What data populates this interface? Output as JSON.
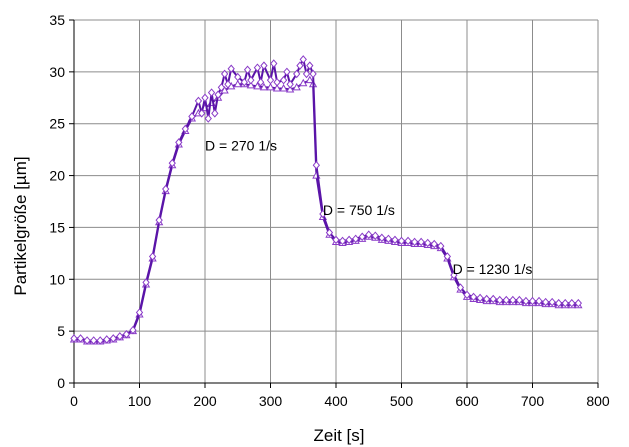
{
  "chart_data": {
    "type": "line",
    "title": "",
    "xlabel": "Zeit [s]",
    "ylabel": "Partikelgröße  [µm]",
    "xlim": [
      0,
      800
    ],
    "ylim": [
      0,
      35
    ],
    "xticks": [
      0,
      100,
      200,
      300,
      400,
      500,
      600,
      700,
      800
    ],
    "yticks": [
      0,
      5,
      10,
      15,
      20,
      25,
      30,
      35
    ],
    "grid": true,
    "line_color": "#5a14a8",
    "marker_color": "#8a3cc8",
    "series": [
      {
        "marker": "triangle",
        "x": [
          0,
          10,
          20,
          30,
          40,
          50,
          60,
          70,
          80,
          90,
          100,
          110,
          120,
          130,
          140,
          150,
          160,
          170,
          180,
          190,
          200,
          210,
          220,
          230,
          240,
          250,
          260,
          270,
          280,
          290,
          300,
          310,
          320,
          330,
          340,
          350,
          360,
          365,
          370,
          380,
          390,
          400,
          410,
          420,
          430,
          440,
          450,
          460,
          470,
          480,
          490,
          500,
          510,
          520,
          530,
          540,
          550,
          560,
          570,
          580,
          590,
          600,
          610,
          620,
          630,
          640,
          650,
          660,
          670,
          680,
          690,
          700,
          710,
          720,
          730,
          740,
          750,
          760,
          770
        ],
        "y": [
          4.2,
          4.2,
          4.0,
          4.0,
          4.0,
          4.1,
          4.2,
          4.4,
          4.6,
          5.0,
          6.6,
          9.5,
          12.0,
          15.5,
          18.5,
          21.0,
          23.0,
          24.3,
          25.5,
          26.0,
          26.5,
          27.0,
          27.5,
          28.2,
          28.6,
          28.8,
          28.8,
          28.7,
          28.6,
          28.5,
          28.5,
          28.4,
          28.4,
          28.3,
          28.5,
          28.9,
          29.2,
          28.8,
          20.0,
          16.0,
          14.3,
          13.6,
          13.5,
          13.6,
          13.7,
          13.9,
          14.1,
          14.0,
          13.8,
          13.7,
          13.6,
          13.5,
          13.5,
          13.4,
          13.4,
          13.3,
          13.2,
          13.0,
          12.0,
          10.2,
          9.0,
          8.3,
          8.1,
          8.0,
          7.9,
          7.9,
          7.8,
          7.8,
          7.8,
          7.8,
          7.7,
          7.7,
          7.7,
          7.6,
          7.6,
          7.5,
          7.5,
          7.5,
          7.5
        ]
      },
      {
        "marker": "diamond",
        "x": [
          0,
          10,
          20,
          30,
          40,
          50,
          60,
          70,
          80,
          90,
          100,
          110,
          120,
          130,
          140,
          150,
          160,
          170,
          180,
          190,
          195,
          200,
          205,
          210,
          215,
          220,
          225,
          230,
          235,
          240,
          250,
          260,
          265,
          270,
          280,
          285,
          290,
          300,
          305,
          310,
          320,
          325,
          330,
          340,
          345,
          350,
          355,
          360,
          365,
          370,
          380,
          390,
          400,
          410,
          420,
          430,
          440,
          450,
          460,
          470,
          480,
          490,
          500,
          510,
          520,
          530,
          540,
          550,
          560,
          570,
          580,
          590,
          600,
          610,
          620,
          630,
          640,
          650,
          660,
          670,
          680,
          690,
          700,
          710,
          720,
          730,
          740,
          750,
          760,
          770
        ],
        "y": [
          4.3,
          4.3,
          4.1,
          4.1,
          4.1,
          4.2,
          4.3,
          4.5,
          4.7,
          5.1,
          6.8,
          9.7,
          12.2,
          15.7,
          18.7,
          21.2,
          23.2,
          24.5,
          25.7,
          27.2,
          26.0,
          27.5,
          25.5,
          28.0,
          26.0,
          27.8,
          28.5,
          29.8,
          28.8,
          30.3,
          29.5,
          29.0,
          30.2,
          29.2,
          30.4,
          29.0,
          30.6,
          29.2,
          30.8,
          29.0,
          29.2,
          30.0,
          28.8,
          29.8,
          30.6,
          31.2,
          29.8,
          30.6,
          29.8,
          21.0,
          16.3,
          14.5,
          13.8,
          13.7,
          13.8,
          13.9,
          14.1,
          14.3,
          14.2,
          14.0,
          13.9,
          13.8,
          13.7,
          13.7,
          13.6,
          13.6,
          13.5,
          13.4,
          13.2,
          12.2,
          10.4,
          9.2,
          8.5,
          8.3,
          8.2,
          8.1,
          8.1,
          8.0,
          8.0,
          8.0,
          8.0,
          7.9,
          7.9,
          7.9,
          7.8,
          7.8,
          7.7,
          7.7,
          7.7,
          7.7
        ]
      }
    ],
    "annotations": [
      {
        "text": "D = 270 1/s",
        "x": 200,
        "y": 22.4
      },
      {
        "text": "D = 750 1/s",
        "x": 380,
        "y": 16.2
      },
      {
        "text": "D = 1230 1/s",
        "x": 578,
        "y": 10.5
      }
    ]
  }
}
